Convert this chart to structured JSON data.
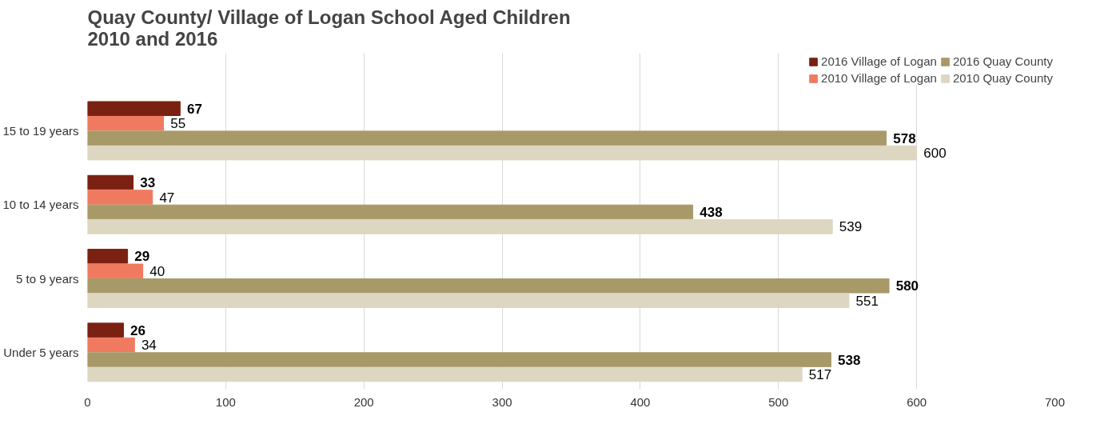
{
  "chart_data": {
    "type": "bar",
    "orientation": "horizontal",
    "title": "Quay County/ Village of Logan School Aged Children\n2010 and 2016",
    "categories": [
      "15 to 19 years",
      "10 to 14 years",
      "5 to 9 years",
      "Under 5 years"
    ],
    "series": [
      {
        "name": "2016 Village of Logan",
        "color": "#7b2112",
        "values": [
          67,
          33,
          29,
          26
        ]
      },
      {
        "name": "2010 Village of Logan",
        "color": "#f07a5f",
        "values": [
          55,
          47,
          40,
          34
        ]
      },
      {
        "name": "2016 Quay County",
        "color": "#a89a68",
        "values": [
          578,
          438,
          580,
          538
        ]
      },
      {
        "name": "2010 Quay County",
        "color": "#ddd6c1",
        "values": [
          600,
          539,
          551,
          517
        ]
      }
    ],
    "xlim": [
      0,
      700
    ],
    "xticks": [
      0,
      100,
      200,
      300,
      400,
      500,
      600,
      700
    ],
    "grid": "x",
    "legend": "top right",
    "data_labels": true
  }
}
